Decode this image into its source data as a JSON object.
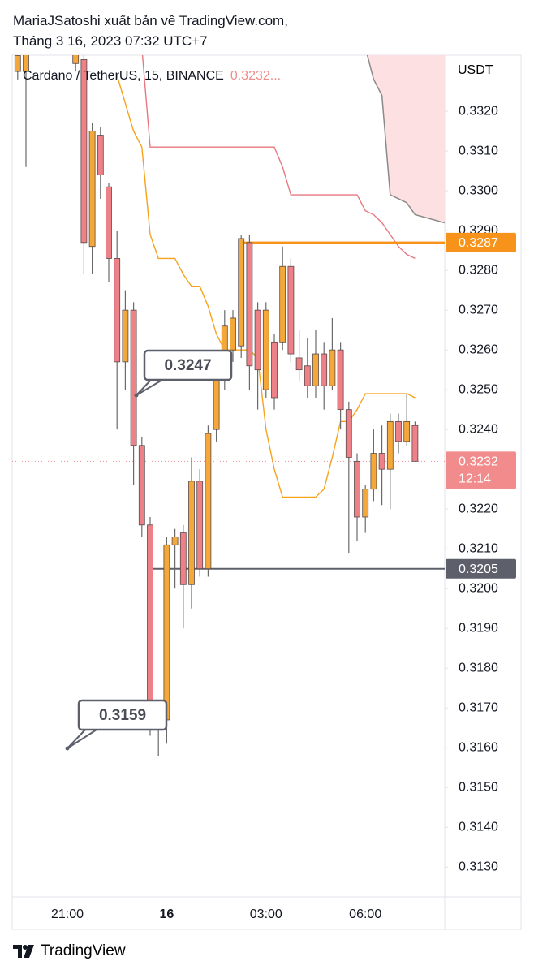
{
  "header": {
    "line1": "MariaJSatoshi xuất bản về TradingView.com,",
    "line2": "Tháng 3 16, 2023 07:32 UTC+7"
  },
  "footer": {
    "brand": "TradingView"
  },
  "chart_data": {
    "type": "candlestick",
    "legend": {
      "symbol": "Cardano / TetherUS, 15, BINANCE",
      "price": "0.3232..."
    },
    "y_unit": "USDT",
    "categories": [
      null,
      null,
      null,
      null,
      null,
      null,
      "21:00",
      null,
      null,
      null,
      null,
      null,
      null,
      null,
      null,
      null,
      null,
      null,
      "16",
      null,
      null,
      null,
      null,
      null,
      null,
      null,
      null,
      null,
      null,
      null,
      "03:00",
      null,
      null,
      null,
      null,
      null,
      null,
      null,
      null,
      null,
      null,
      null,
      "06:00",
      null,
      null,
      null,
      null,
      null,
      null
    ],
    "open": [
      0.333,
      0.333,
      null,
      null,
      null,
      null,
      null,
      0.3332,
      0.3333,
      0.3286,
      0.3314,
      0.3301,
      0.3283,
      0.3257,
      0.327,
      0.3236,
      0.3216,
      0.3167,
      0.3167,
      0.3211,
      0.3214,
      0.3201,
      0.3227,
      0.3205,
      0.324,
      0.3254,
      0.326,
      0.3261,
      0.3287,
      0.327,
      0.325,
      0.3262,
      0.3262,
      0.3281,
      0.3258,
      0.3256,
      0.3251,
      0.3259,
      0.3251,
      0.326,
      0.3245,
      0.3232,
      0.3218,
      0.3225,
      0.3234,
      0.323,
      0.3242,
      0.3237,
      0.3241
    ],
    "high": [
      0.3336,
      0.3337,
      null,
      null,
      null,
      null,
      null,
      0.3338,
      0.3336,
      0.3317,
      0.3316,
      0.3302,
      0.329,
      0.3275,
      0.3272,
      0.3238,
      0.3218,
      0.3172,
      0.3213,
      0.3215,
      0.3216,
      0.3233,
      0.323,
      0.3241,
      0.3256,
      0.327,
      0.327,
      0.3289,
      0.3289,
      0.3272,
      0.3272,
      0.3264,
      0.3286,
      0.3283,
      0.3265,
      0.3263,
      0.3265,
      0.3262,
      0.3268,
      0.3262,
      0.3247,
      0.3234,
      0.3226,
      0.324,
      0.3241,
      0.3244,
      0.3244,
      0.3249,
      0.3242
    ],
    "low": [
      0.3328,
      0.3306,
      null,
      null,
      null,
      null,
      null,
      0.333,
      0.3279,
      0.3279,
      0.3298,
      0.3277,
      0.324,
      0.325,
      0.3226,
      0.3213,
      0.3163,
      0.3158,
      0.3161,
      0.32,
      0.319,
      0.3195,
      0.3203,
      0.3203,
      0.3237,
      0.325,
      0.3257,
      0.3258,
      0.325,
      0.3245,
      0.3248,
      0.3245,
      0.326,
      0.3257,
      0.3252,
      0.3248,
      0.3248,
      0.3245,
      0.325,
      0.324,
      0.3209,
      0.3212,
      0.3214,
      0.3222,
      0.3221,
      0.322,
      0.3234,
      0.3236,
      0.3232
    ],
    "close": [
      0.3334,
      0.3335,
      null,
      null,
      null,
      null,
      null,
      0.3336,
      0.3287,
      0.3315,
      0.3304,
      0.3283,
      0.3257,
      0.327,
      0.3236,
      0.3216,
      0.3171,
      0.3171,
      0.3211,
      0.3213,
      0.3201,
      0.3227,
      0.3205,
      0.3239,
      0.3254,
      0.3266,
      0.3268,
      0.3288,
      0.3256,
      0.3255,
      0.327,
      0.3248,
      0.3281,
      0.3259,
      0.3255,
      0.3251,
      0.3259,
      0.3251,
      0.326,
      0.3245,
      0.3233,
      0.3218,
      0.3225,
      0.3234,
      0.323,
      0.3242,
      0.3237,
      0.3242,
      0.3232
    ],
    "up_color": "#f5a83a",
    "down_color": "#ee8088",
    "border_color": "#5a4a4a",
    "lines": [
      {
        "color": "#f7a21b",
        "values": [
          null,
          null,
          null,
          null,
          null,
          null,
          null,
          null,
          null,
          null,
          null,
          null,
          0.3329,
          0.3322,
          0.3315,
          0.3311,
          0.3289,
          0.3283,
          0.3283,
          0.3283,
          0.3279,
          0.3276,
          0.3276,
          0.3271,
          0.3264,
          0.326,
          0.326,
          0.326,
          0.326,
          0.3258,
          0.324,
          0.323,
          0.3223,
          0.3223,
          0.3223,
          0.3223,
          0.3223,
          0.3225,
          0.3233,
          0.3242,
          0.3242,
          0.3245,
          0.3249,
          0.3249,
          0.3249,
          0.3249,
          0.3249,
          0.3249,
          0.3248
        ]
      },
      {
        "color": "#e8787f",
        "values": [
          null,
          null,
          null,
          null,
          null,
          null,
          null,
          null,
          null,
          null,
          null,
          null,
          null,
          null,
          null,
          0.3336,
          0.3311,
          0.3311,
          0.3311,
          0.3311,
          0.3311,
          0.3311,
          0.3311,
          0.3311,
          0.3311,
          0.3311,
          0.3311,
          0.3311,
          0.3311,
          0.3311,
          0.3311,
          0.3311,
          0.3306,
          0.3299,
          0.3299,
          0.3299,
          0.3299,
          0.3299,
          0.3299,
          0.3299,
          0.3299,
          0.3299,
          0.3295,
          0.3294,
          0.3292,
          0.3289,
          0.3286,
          0.3284,
          0.3283
        ]
      }
    ],
    "cloud": {
      "color": "#fde0e2",
      "edge_color": "#8a8a8a",
      "values": [
        null,
        null,
        null,
        null,
        null,
        null,
        null,
        null,
        null,
        null,
        null,
        null,
        null,
        null,
        null,
        null,
        null,
        null,
        null,
        null,
        null,
        null,
        null,
        null,
        null,
        null,
        null,
        null,
        null,
        null,
        null,
        null,
        null,
        null,
        null,
        null,
        null,
        null,
        null,
        null,
        null,
        null,
        0.3336,
        0.3328,
        0.3324,
        0.3299,
        0.3298,
        0.3297,
        0.3294
      ]
    },
    "hlines": [
      {
        "value": 0.3287,
        "color": "#f7931a"
      },
      {
        "value": 0.3205,
        "color": "#5d606b"
      }
    ],
    "current": {
      "value": 0.3232,
      "countdown": "12:14",
      "color": "#f28b8b"
    },
    "callouts": [
      {
        "value": 0.3247
      },
      {
        "value": 0.3159
      }
    ],
    "ylim": [
      0.31225,
      0.33341
    ],
    "yticks": [
      {
        "value": 0.313,
        "label": "0.3130"
      },
      {
        "value": 0.314,
        "label": "0.3140"
      },
      {
        "value": 0.315,
        "label": "0.3150"
      },
      {
        "value": 0.316,
        "label": "0.3160"
      },
      {
        "value": 0.317,
        "label": "0.3170"
      },
      {
        "value": 0.318,
        "label": "0.3180"
      },
      {
        "value": 0.319,
        "label": "0.3190"
      },
      {
        "value": 0.32,
        "label": "0.3200"
      },
      {
        "value": 0.321,
        "label": "0.3210"
      },
      {
        "value": 0.322,
        "label": "0.3220"
      },
      {
        "value": 0.323,
        "label": "0.3230"
      },
      {
        "value": 0.324,
        "label": "0.3240"
      },
      {
        "value": 0.325,
        "label": "0.3250"
      },
      {
        "value": 0.326,
        "label": "0.3260"
      },
      {
        "value": 0.327,
        "label": "0.3270"
      },
      {
        "value": 0.328,
        "label": "0.3280"
      },
      {
        "value": 0.329,
        "label": "0.3290"
      },
      {
        "value": 0.33,
        "label": "0.3300"
      },
      {
        "value": 0.331,
        "label": "0.3310"
      },
      {
        "value": 0.332,
        "label": "0.3320"
      }
    ]
  }
}
